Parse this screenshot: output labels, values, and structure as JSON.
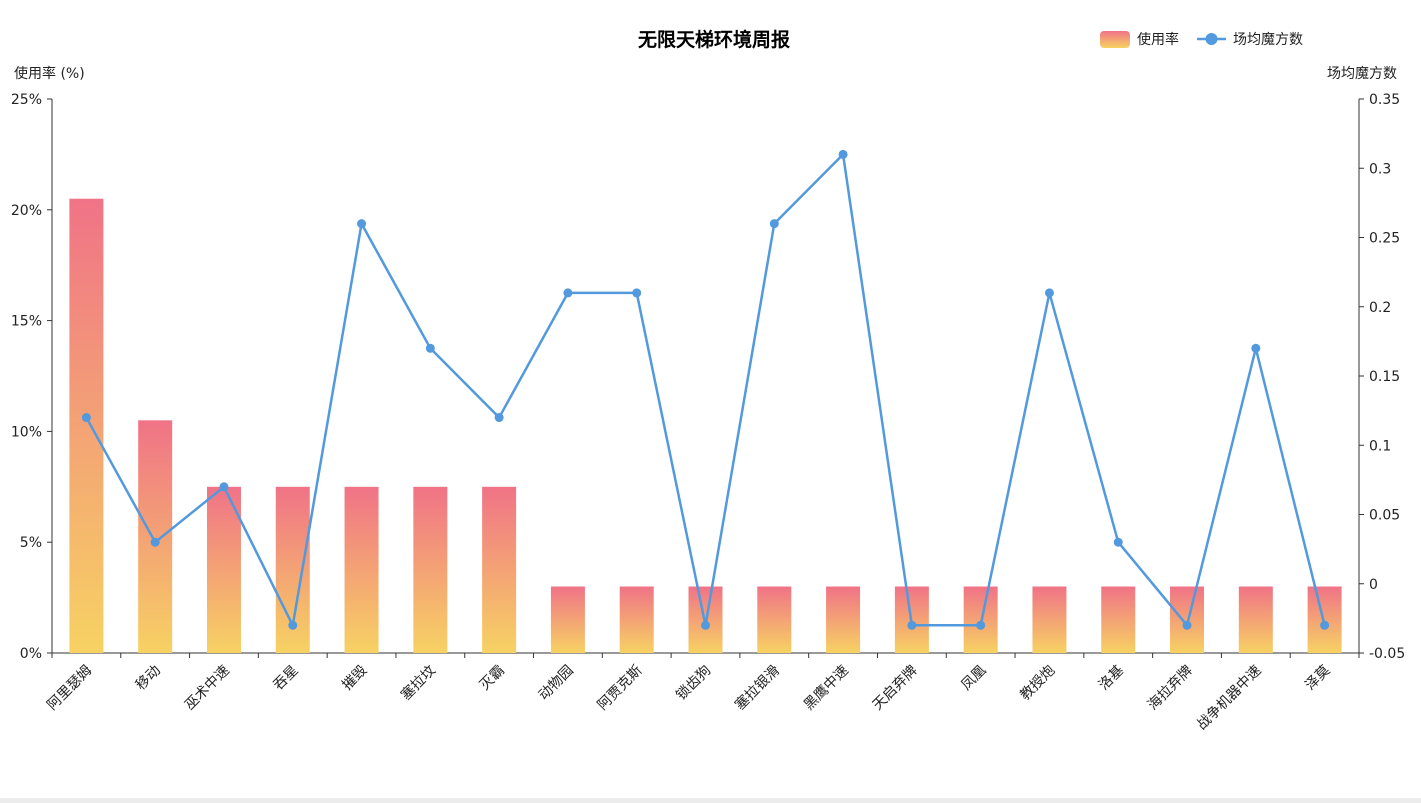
{
  "chart_data": {
    "type": "bar+line",
    "title": "无限天梯环境周报",
    "legend": {
      "placement": "top-right",
      "items": [
        {
          "label": "使用率",
          "kind": "bar"
        },
        {
          "label": "场均魔方数",
          "kind": "line"
        }
      ]
    },
    "y_left": {
      "label": "使用率 (%)",
      "ylim": [
        0,
        25
      ],
      "ticks": [
        "0%",
        "5%",
        "10%",
        "15%",
        "20%",
        "25%"
      ]
    },
    "y_right": {
      "label": "场均魔方数",
      "ylim": [
        -0.05,
        0.35
      ],
      "ticks": [
        "-0.05",
        "0",
        "0.05",
        "0.1",
        "0.15",
        "0.2",
        "0.25",
        "0.3",
        "0.35"
      ]
    },
    "grid": false,
    "categories": [
      "阿里瑟姆",
      "移动",
      "巫术中速",
      "吞星",
      "摧毁",
      "塞拉坟",
      "灭霸",
      "动物园",
      "阿贾克斯",
      "锁齿狗",
      "塞拉银滑",
      "黑鹰中速",
      "天启弃牌",
      "凤凰",
      "教授炮",
      "洛基",
      "海拉弃牌",
      "战争机器中速",
      "泽莫"
    ],
    "series": [
      {
        "name": "使用率",
        "type": "bar",
        "axis": "left",
        "values": [
          20.5,
          10.5,
          7.5,
          7.5,
          7.5,
          7.5,
          7.5,
          3,
          3,
          3,
          3,
          3,
          3,
          3,
          3,
          3,
          3,
          3,
          3
        ]
      },
      {
        "name": "场均魔方数",
        "type": "line",
        "axis": "right",
        "values": [
          0.12,
          0.03,
          0.07,
          -0.03,
          0.26,
          0.17,
          0.12,
          0.21,
          0.21,
          -0.03,
          0.26,
          0.31,
          -0.03,
          -0.03,
          0.21,
          0.03,
          -0.03,
          0.17,
          -0.03
        ]
      }
    ],
    "colors": {
      "bar_top": "#f07387",
      "bar_bottom": "#f7d263",
      "line": "#5299de",
      "axis": "#333333"
    }
  }
}
